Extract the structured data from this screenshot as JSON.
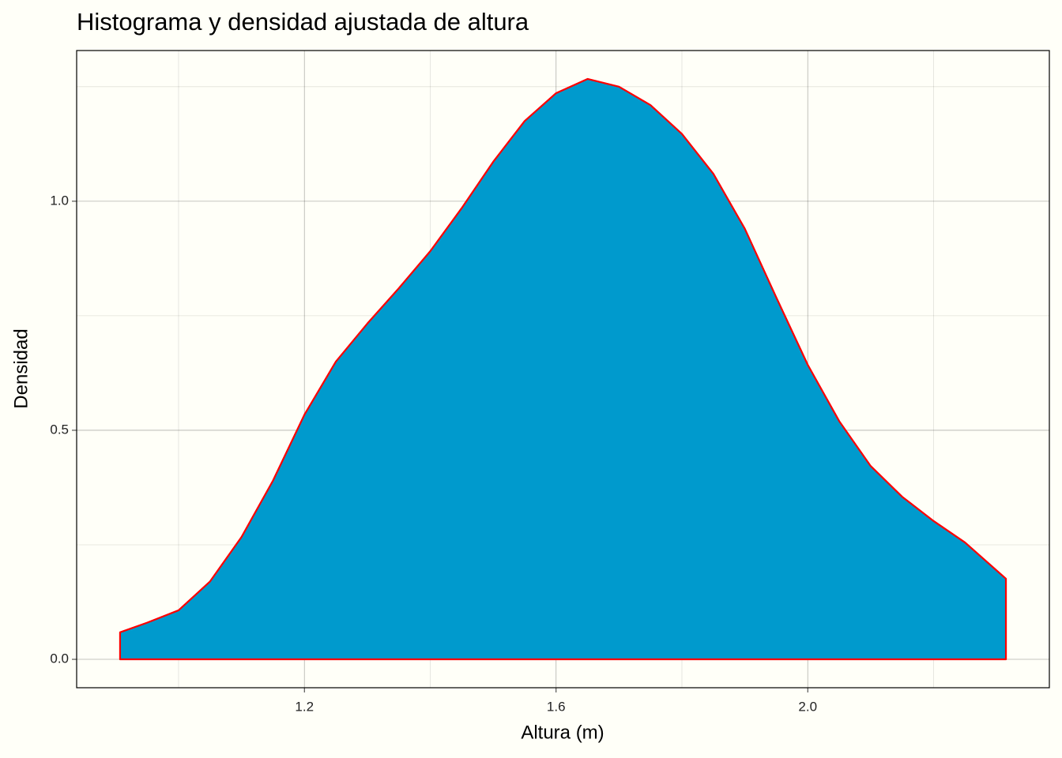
{
  "chart_data": {
    "type": "area",
    "title": "Histograma y densidad ajustada de altura",
    "x_label": "Altura (m)",
    "y_label": "Densidad",
    "x": [
      0.907,
      0.95,
      1.0,
      1.05,
      1.1,
      1.15,
      1.2,
      1.25,
      1.3,
      1.35,
      1.4,
      1.45,
      1.5,
      1.55,
      1.6,
      1.65,
      1.7,
      1.75,
      1.8,
      1.85,
      1.9,
      1.95,
      2.0,
      2.05,
      2.1,
      2.15,
      2.2,
      2.25,
      2.315
    ],
    "values": [
      0.059,
      0.08,
      0.107,
      0.17,
      0.267,
      0.39,
      0.534,
      0.65,
      0.733,
      0.81,
      0.891,
      0.985,
      1.086,
      1.175,
      1.236,
      1.267,
      1.25,
      1.21,
      1.147,
      1.06,
      0.94,
      0.79,
      0.643,
      0.52,
      0.422,
      0.355,
      0.302,
      0.255,
      0.176
    ],
    "color": "#009acd",
    "line_color": "#ff0000",
    "xlim": [
      0.838,
      2.384
    ],
    "ylim": [
      -0.062,
      1.329
    ],
    "xticks": [
      1.2,
      1.6,
      {
        "value": 2.0,
        "label": "2.0"
      }
    ],
    "yticks": [
      {
        "value": 0,
        "label": "0.0"
      },
      0.5,
      {
        "value": 1.0,
        "label": "1.0"
      }
    ],
    "grid": true
  }
}
